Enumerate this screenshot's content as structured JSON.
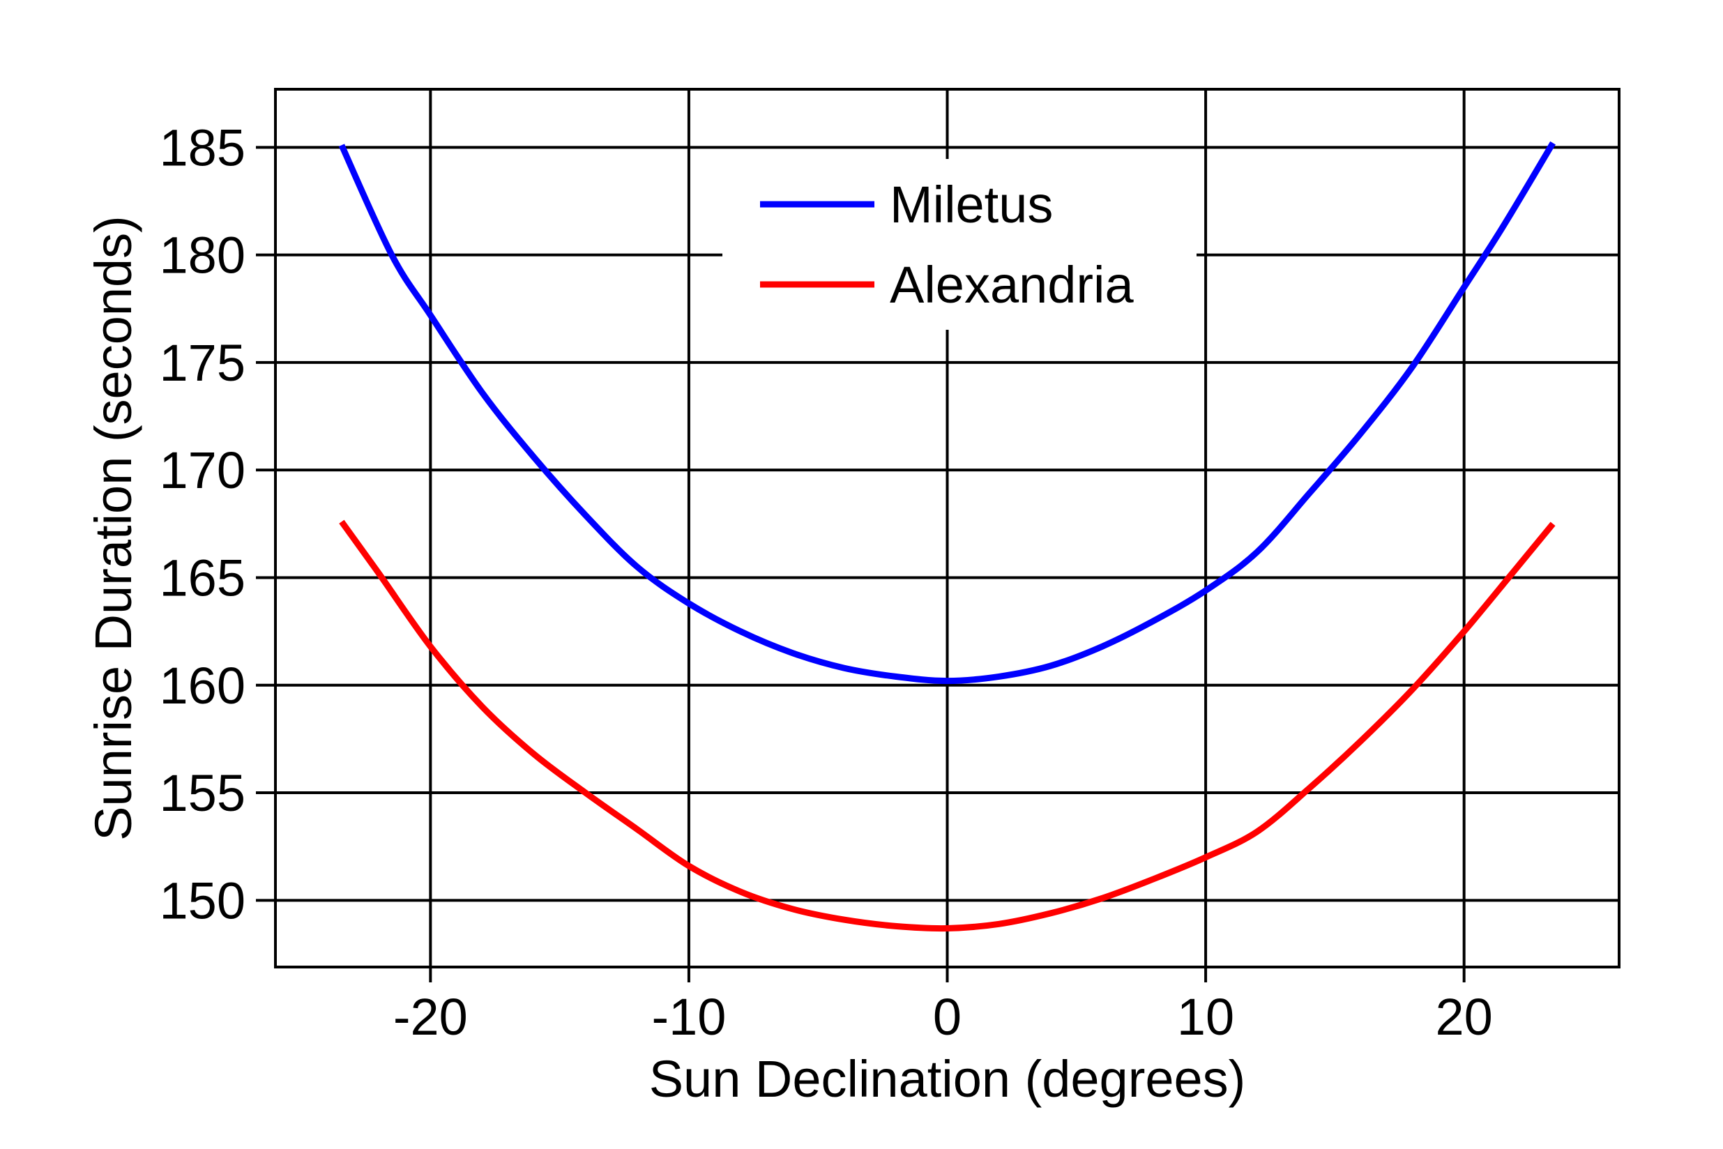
{
  "chart_data": {
    "type": "line",
    "title": "",
    "xlabel": "Sun Declination (degrees)",
    "ylabel": "Sunrise Duration (seconds)",
    "xlim": [
      -26,
      26
    ],
    "ylim": [
      146.9,
      187.7
    ],
    "xticks": [
      -20,
      -10,
      0,
      10,
      20
    ],
    "yticks": [
      150,
      155,
      160,
      165,
      170,
      175,
      180,
      185
    ],
    "grid": true,
    "legend_position": "top-center",
    "series": [
      {
        "name": "Miletus",
        "color": "#0000ff",
        "x": [
          -23.44,
          -21.5,
          -20,
          -18,
          -16,
          -14,
          -12,
          -10,
          -8,
          -6,
          -4,
          -2,
          0,
          2,
          4,
          6,
          8,
          10,
          12,
          14,
          16,
          18,
          20,
          21.5,
          23.44
        ],
        "y": [
          185.1,
          180.0,
          177.2,
          173.6,
          170.6,
          167.9,
          165.5,
          163.8,
          162.5,
          161.5,
          160.8,
          160.4,
          160.2,
          160.4,
          160.9,
          161.8,
          163.0,
          164.4,
          166.2,
          168.9,
          171.7,
          174.8,
          178.5,
          181.3,
          185.2
        ]
      },
      {
        "name": "Alexandria",
        "color": "#ff0000",
        "x": [
          -23.44,
          -22,
          -20,
          -18,
          -16,
          -14,
          -12,
          -10,
          -8,
          -6,
          -4,
          -2,
          0,
          2,
          4,
          6,
          8,
          10,
          12,
          14,
          16,
          18,
          20,
          22,
          23.44
        ],
        "y": [
          167.6,
          165.2,
          161.8,
          159.0,
          156.8,
          155.0,
          153.3,
          151.6,
          150.4,
          149.6,
          149.1,
          148.8,
          148.7,
          148.9,
          149.4,
          150.1,
          151.0,
          152.0,
          153.2,
          155.2,
          157.4,
          159.8,
          162.5,
          165.4,
          167.5
        ]
      }
    ]
  }
}
